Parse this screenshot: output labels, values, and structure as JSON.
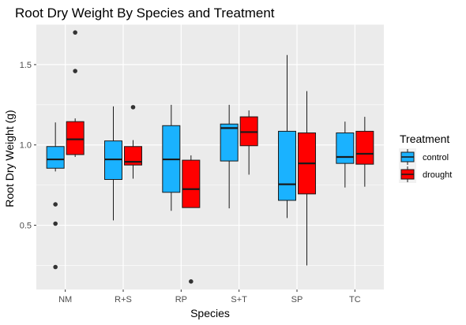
{
  "chart_data": {
    "type": "boxplot",
    "title": "Root Dry Weight By Species and Treatment",
    "xlabel": "Species",
    "ylabel": "Root Dry Weight (g)",
    "ylim": [
      0.1,
      1.75
    ],
    "yticks": [
      0.5,
      1.0,
      1.5
    ],
    "ytick_labels": [
      "0.5",
      "1.0",
      "1.5"
    ],
    "grid": true,
    "categories": [
      "NM",
      "R+S",
      "RP",
      "S+T",
      "SP",
      "TC"
    ],
    "legend": {
      "title": "Treatment",
      "position": "right"
    },
    "series": [
      {
        "name": "control",
        "color": "#1AB2FF",
        "boxes": [
          {
            "q1": 0.855,
            "median": 0.91,
            "q3": 0.99,
            "whisker_low": 0.835,
            "whisker_high": 1.14,
            "outliers": [
              0.63,
              0.51,
              0.24
            ]
          },
          {
            "q1": 0.785,
            "median": 0.91,
            "q3": 1.025,
            "whisker_low": 0.53,
            "whisker_high": 1.24,
            "outliers": []
          },
          {
            "q1": 0.705,
            "median": 0.91,
            "q3": 1.12,
            "whisker_low": 0.59,
            "whisker_high": 1.25,
            "outliers": []
          },
          {
            "q1": 0.9,
            "median": 1.105,
            "q3": 1.13,
            "whisker_low": 0.605,
            "whisker_high": 1.25,
            "outliers": []
          },
          {
            "q1": 0.655,
            "median": 0.755,
            "q3": 1.085,
            "whisker_low": 0.545,
            "whisker_high": 1.56,
            "outliers": []
          },
          {
            "q1": 0.885,
            "median": 0.925,
            "q3": 1.075,
            "whisker_low": 0.735,
            "whisker_high": 1.145,
            "outliers": []
          }
        ]
      },
      {
        "name": "drought",
        "color": "#FF0000",
        "boxes": [
          {
            "q1": 0.94,
            "median": 1.035,
            "q3": 1.145,
            "whisker_low": 0.925,
            "whisker_high": 1.165,
            "outliers": [
              1.7,
              1.46
            ]
          },
          {
            "q1": 0.875,
            "median": 0.895,
            "q3": 0.99,
            "whisker_low": 0.79,
            "whisker_high": 1.03,
            "outliers": [
              1.235
            ]
          },
          {
            "q1": 0.61,
            "median": 0.725,
            "q3": 0.905,
            "whisker_low": 0.61,
            "whisker_high": 0.935,
            "outliers": [
              0.15
            ]
          },
          {
            "q1": 0.995,
            "median": 1.08,
            "q3": 1.175,
            "whisker_low": 0.815,
            "whisker_high": 1.215,
            "outliers": []
          },
          {
            "q1": 0.695,
            "median": 0.885,
            "q3": 1.075,
            "whisker_low": 0.25,
            "whisker_high": 1.335,
            "outliers": []
          },
          {
            "q1": 0.88,
            "median": 0.945,
            "q3": 1.085,
            "whisker_low": 0.74,
            "whisker_high": 1.175,
            "outliers": []
          }
        ]
      }
    ]
  },
  "style": {
    "panel_bg": "#EBEBEB",
    "grid_color": "#FFFFFF",
    "box_stroke": "#1A1A1A",
    "outlier_color": "#333333"
  }
}
